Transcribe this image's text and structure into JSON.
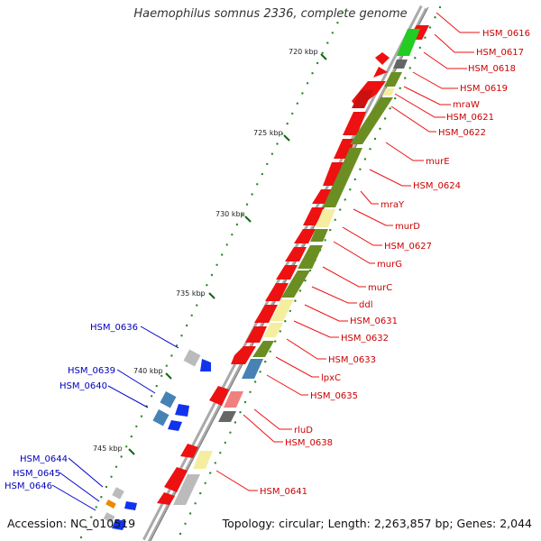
{
  "title": "Haemophilus somnus 2336, complete genome",
  "accession": "Accession: NC_010519",
  "topology": "Topology: circular; Length: 2,263,857 bp; Genes: 2,044",
  "ticks": [
    {
      "kbp": 720,
      "label": "720 kbp"
    },
    {
      "kbp": 725,
      "label": "725 kbp"
    },
    {
      "kbp": 730,
      "label": "730 kbp"
    },
    {
      "kbp": 735,
      "label": "735 kbp"
    },
    {
      "kbp": 740,
      "label": "740 kbp"
    },
    {
      "kbp": 745,
      "label": "745 kbp"
    }
  ],
  "right_labels": [
    "HSM_0616",
    "HSM_0617",
    "HSM_0618",
    "HSM_0619",
    "mraW",
    "HSM_0621",
    "HSM_0622",
    "murE",
    "HSM_0624",
    "mraY",
    "murD",
    "HSM_0627",
    "murG",
    "murC",
    "ddl",
    "HSM_0631",
    "HSM_0632",
    "HSM_0633",
    "lpxC",
    "HSM_0635",
    "rluD",
    "HSM_0638",
    "HSM_0641"
  ],
  "left_labels": [
    "HSM_0636",
    "HSM_0639",
    "HSM_0640",
    "HSM_0644",
    "HSM_0645",
    "HSM_0646"
  ],
  "colors": {
    "forward_cds": "#ee1111",
    "reverse_cds": "#1133ee",
    "cog_olive": "#6b8e23",
    "cog_yellow": "#f5eea0",
    "cog_blue": "#4682b4",
    "cog_grey": "#bbbbbb",
    "cog_green": "#22cc22",
    "label_red": "#cc0000",
    "label_blue": "#0000bb",
    "backbone": "#999999"
  }
}
